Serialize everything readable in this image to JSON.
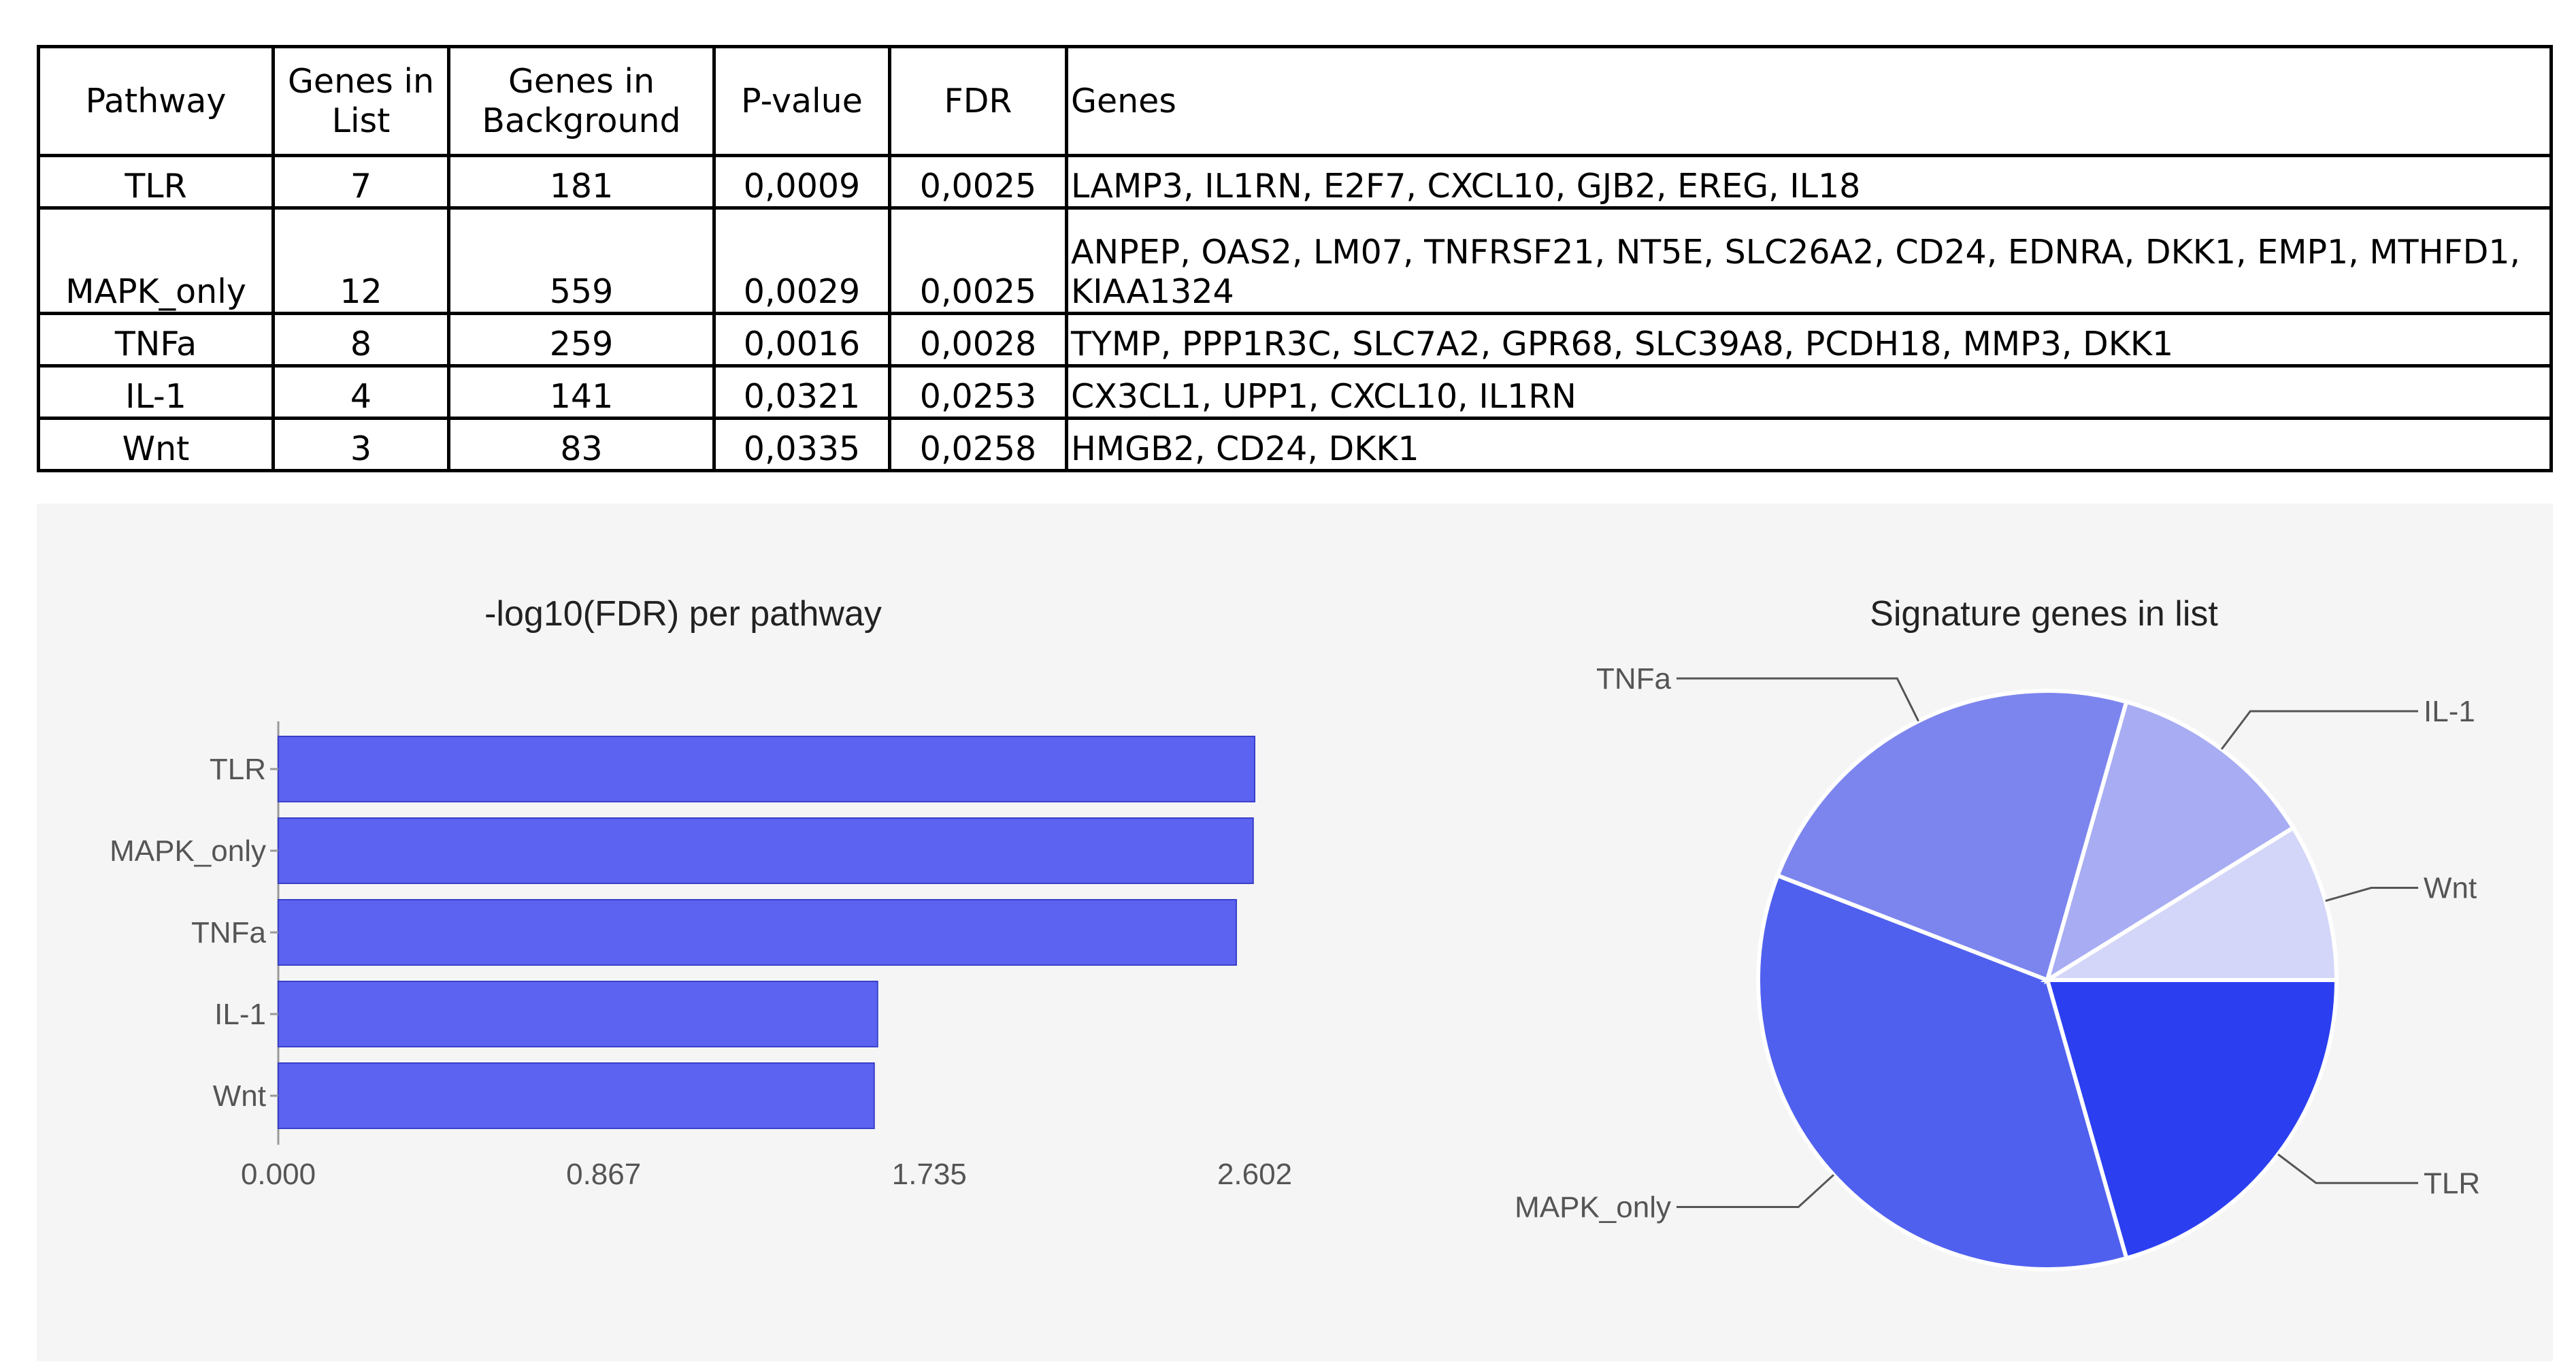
{
  "table": {
    "headers": [
      "Pathway",
      "Genes in List",
      "Genes in Background",
      "P-value",
      "FDR",
      "Genes"
    ],
    "rows": [
      {
        "pathway": "TLR",
        "genes_in_list": "7",
        "genes_in_background": "181",
        "p_value": "0,0009",
        "fdr": "0,0025",
        "genes": "LAMP3, IL1RN, E2F7, CXCL10, GJB2, EREG, IL18"
      },
      {
        "pathway": "MAPK_only",
        "genes_in_list": "12",
        "genes_in_background": "559",
        "p_value": "0,0029",
        "fdr": "0,0025",
        "genes": "ANPEP, OAS2, LM07, TNFRSF21, NT5E, SLC26A2, CD24, EDNRA, DKK1, EMP1, MTHFD1, KIAA1324"
      },
      {
        "pathway": "TNFa",
        "genes_in_list": "8",
        "genes_in_background": "259",
        "p_value": "0,0016",
        "fdr": "0,0028",
        "genes": "TYMP, PPP1R3C, SLC7A2, GPR68, SLC39A8, PCDH18, MMP3, DKK1"
      },
      {
        "pathway": "IL-1",
        "genes_in_list": "4",
        "genes_in_background": "141",
        "p_value": "0,0321",
        "fdr": "0,0253",
        "genes": "CX3CL1, UPP1, CXCL10, IL1RN"
      },
      {
        "pathway": "Wnt",
        "genes_in_list": "3",
        "genes_in_background": "83",
        "p_value": "0,0335",
        "fdr": "0,0258",
        "genes": "HMGB2, CD24, DKK1"
      }
    ]
  },
  "chart_data": [
    {
      "type": "bar",
      "orientation": "horizontal",
      "title": "-log10(FDR) per pathway",
      "categories": [
        "TLR",
        "MAPK_only",
        "TNFa",
        "IL-1",
        "Wnt"
      ],
      "values": [
        2.602,
        2.598,
        2.553,
        1.597,
        1.588
      ],
      "xlim": [
        0,
        2.602
      ],
      "xticks": [
        "0.000",
        "0.867",
        "1.735",
        "2.602"
      ],
      "color": "#5c63f0"
    },
    {
      "type": "pie",
      "title": "Signature genes in list",
      "labels": [
        "TLR",
        "MAPK_only",
        "TNFa",
        "IL-1",
        "Wnt"
      ],
      "values": [
        7,
        12,
        8,
        4,
        3
      ],
      "colors": [
        "#2b3ff0",
        "#5060ee",
        "#7c85ee",
        "#a7acf3",
        "#d3d6f8"
      ]
    }
  ]
}
